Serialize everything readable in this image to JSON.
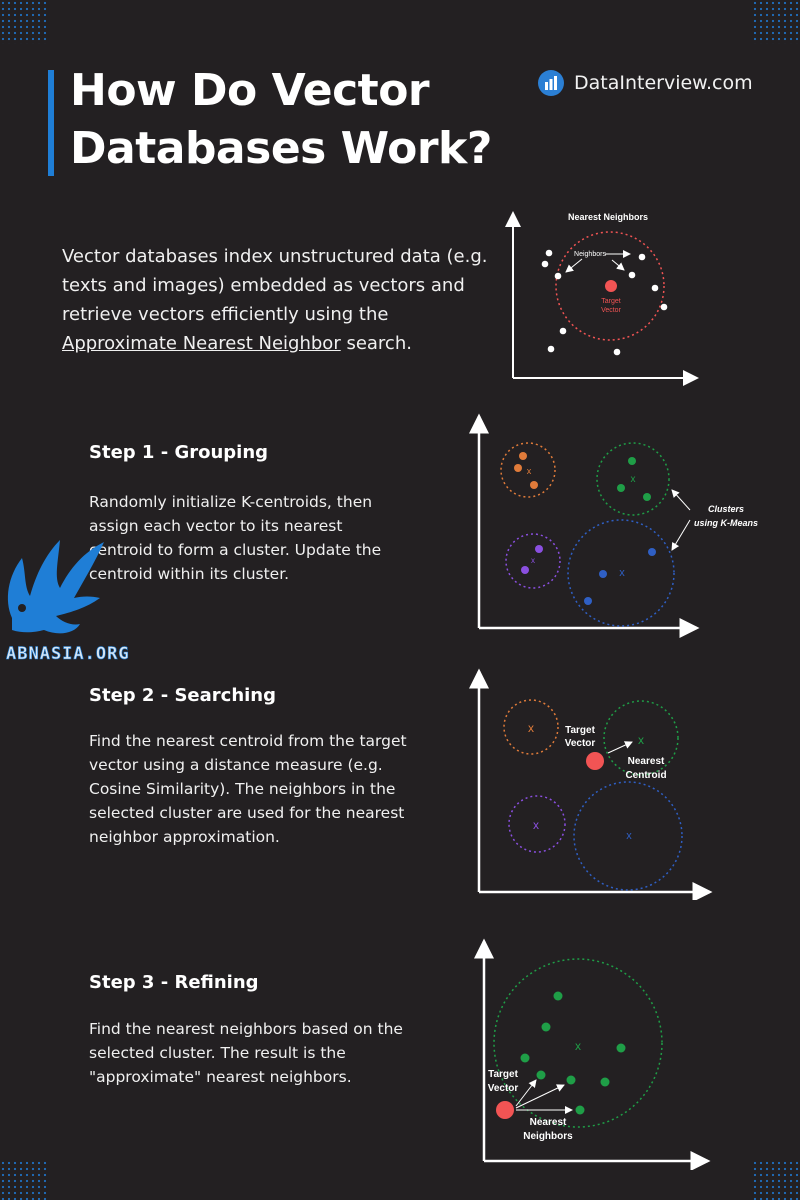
{
  "brand": {
    "name": "DataInterview.com",
    "icon": "bar-chart-icon"
  },
  "title": {
    "line1": "How Do Vector",
    "line2": "Databases Work?"
  },
  "intro": {
    "text_before": "Vector databases index unstructured data (e.g. texts and images) embedded as vectors and retrieve vectors efficiently using the ",
    "link_text": "Approximate Nearest Neighbor",
    "text_after": " search."
  },
  "diagram_intro": {
    "title": "Nearest Neighbors",
    "neighbors_label": "Neighbors",
    "target_label_1": "Target",
    "target_label_2": "Vector"
  },
  "steps": [
    {
      "title": "Step 1 - Grouping",
      "body": "Randomly initialize K-centroids, then assign each vector to its nearest centroid to form a cluster. Update the centroid within its cluster.",
      "annotation_1": "Clusters",
      "annotation_2": "using K-Means",
      "centroid_mark": "x"
    },
    {
      "title": "Step 2 - Searching",
      "body": "Find the nearest centroid from the target vector using a distance measure (e.g. Cosine Similarity). The neighbors in the selected cluster are used for the nearest neighbor approximation.",
      "target_label_1": "Target",
      "target_label_2": "Vector",
      "centroid_label_1": "Nearest",
      "centroid_label_2": "Centroid",
      "centroid_mark": "x"
    },
    {
      "title": "Step 3 - Refining",
      "body": "Find the nearest neighbors based on the selected cluster. The result is the \"approximate\" nearest neighbors.",
      "target_label_1": "Target",
      "target_label_2": "Vector",
      "neighbors_label_1": "Nearest",
      "neighbors_label_2": "Neighbors",
      "centroid_mark": "x"
    }
  ],
  "watermark": {
    "text": "ABNASIA.ORG",
    "icon": "griffin-logo-icon"
  },
  "colors": {
    "background": "#232022",
    "accent": "#1f7ed6",
    "orange": "#e07b3a",
    "green": "#1f9e47",
    "purple": "#8a4fe0",
    "blue": "#2f5fc4",
    "target": "#f25454",
    "dot_white": "#ffffff"
  }
}
